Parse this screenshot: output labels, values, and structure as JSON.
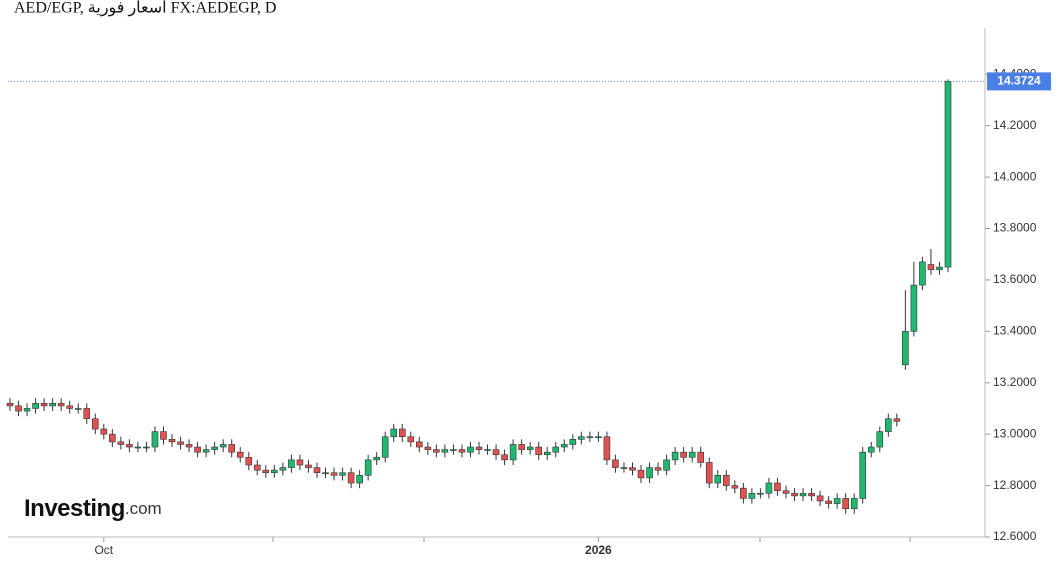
{
  "chart_data": {
    "type": "candlestick",
    "title": "AED/EGP, أسعار فورية FX:AEDEGP, D",
    "logo": {
      "name": "Investing",
      "suffix": ".com"
    },
    "series": [
      {
        "name": "AED/EGP",
        "up_color": "#1fb86e",
        "down_color": "#e05252",
        "open": [
          13.12,
          13.11,
          13.09,
          13.1,
          13.12,
          13.11,
          13.12,
          13.11,
          13.1,
          13.1,
          13.06,
          13.02,
          13.0,
          12.97,
          12.96,
          12.95,
          12.95,
          12.95,
          13.01,
          12.98,
          12.97,
          12.96,
          12.95,
          12.93,
          12.94,
          12.95,
          12.96,
          12.93,
          12.91,
          12.88,
          12.86,
          12.85,
          12.86,
          12.87,
          12.9,
          12.88,
          12.87,
          12.85,
          12.85,
          12.84,
          12.85,
          12.81,
          12.84,
          12.9,
          12.91,
          12.99,
          13.02,
          12.99,
          12.97,
          12.95,
          12.94,
          12.93,
          12.94,
          12.94,
          12.93,
          12.95,
          12.94,
          12.94,
          12.92,
          12.9,
          12.96,
          12.94,
          12.95,
          12.92,
          12.93,
          12.95,
          12.96,
          12.98,
          12.99,
          12.99,
          12.99,
          12.9,
          12.87,
          12.87,
          12.86,
          12.83,
          12.87,
          12.86,
          12.9,
          12.93,
          12.91,
          12.93,
          12.89,
          12.81,
          12.84,
          12.8,
          12.79,
          12.75,
          12.77,
          12.77,
          12.81,
          12.78,
          12.77,
          12.76,
          12.77,
          12.76,
          12.74,
          12.73,
          12.75,
          12.71,
          12.75,
          12.93,
          12.95,
          13.01,
          13.06,
          13.27,
          13.4,
          13.58,
          13.66,
          13.64,
          13.65
        ],
        "high": [
          13.14,
          13.13,
          13.12,
          13.14,
          13.14,
          13.14,
          13.14,
          13.13,
          13.12,
          13.12,
          13.08,
          13.04,
          13.02,
          12.99,
          12.98,
          12.97,
          12.97,
          13.03,
          13.03,
          13.0,
          12.99,
          12.98,
          12.97,
          12.96,
          12.97,
          12.98,
          12.98,
          12.95,
          12.93,
          12.9,
          12.88,
          12.88,
          12.89,
          12.92,
          12.92,
          12.9,
          12.89,
          12.87,
          12.87,
          12.87,
          12.87,
          12.86,
          12.92,
          12.93,
          13.01,
          13.04,
          13.04,
          13.01,
          12.99,
          12.97,
          12.96,
          12.96,
          12.96,
          12.96,
          12.97,
          12.97,
          12.96,
          12.96,
          12.94,
          12.98,
          12.98,
          12.97,
          12.97,
          12.95,
          12.97,
          12.98,
          13.0,
          13.01,
          13.01,
          13.01,
          13.01,
          12.92,
          12.89,
          12.89,
          12.88,
          12.89,
          12.89,
          12.92,
          12.95,
          12.95,
          12.95,
          12.95,
          12.91,
          12.86,
          12.86,
          12.82,
          12.81,
          12.79,
          12.79,
          12.83,
          12.83,
          12.8,
          12.79,
          12.79,
          12.79,
          12.78,
          12.76,
          12.77,
          12.77,
          12.77,
          12.95,
          12.97,
          13.03,
          13.08,
          13.08,
          13.56,
          13.67,
          13.69,
          13.72,
          13.67,
          14.38
        ],
        "low": [
          13.09,
          13.07,
          13.07,
          13.08,
          13.09,
          13.09,
          13.09,
          13.08,
          13.08,
          13.04,
          13.0,
          12.98,
          12.95,
          12.94,
          12.93,
          12.93,
          12.93,
          12.93,
          12.96,
          12.95,
          12.94,
          12.93,
          12.91,
          12.91,
          12.92,
          12.93,
          12.91,
          12.89,
          12.86,
          12.84,
          12.83,
          12.83,
          12.84,
          12.85,
          12.86,
          12.85,
          12.83,
          12.83,
          12.82,
          12.82,
          12.79,
          12.79,
          12.82,
          12.88,
          12.89,
          12.97,
          12.97,
          12.95,
          12.93,
          12.92,
          12.91,
          12.91,
          12.92,
          12.91,
          12.91,
          12.92,
          12.92,
          12.9,
          12.88,
          12.88,
          12.92,
          12.92,
          12.9,
          12.9,
          12.91,
          12.93,
          12.94,
          12.96,
          12.97,
          12.97,
          12.88,
          12.85,
          12.85,
          12.84,
          12.81,
          12.81,
          12.84,
          12.84,
          12.88,
          12.89,
          12.89,
          12.87,
          12.79,
          12.79,
          12.78,
          12.77,
          12.73,
          12.73,
          12.75,
          12.75,
          12.76,
          12.75,
          12.74,
          12.74,
          12.74,
          12.72,
          12.71,
          12.71,
          12.69,
          12.69,
          12.73,
          12.91,
          12.93,
          12.99,
          13.03,
          13.25,
          13.38,
          13.56,
          13.62,
          13.62,
          13.63
        ],
        "close": [
          13.11,
          13.09,
          13.1,
          13.12,
          13.11,
          13.12,
          13.11,
          13.1,
          13.1,
          13.06,
          13.02,
          13.0,
          12.97,
          12.96,
          12.95,
          12.95,
          12.95,
          13.01,
          12.98,
          12.97,
          12.96,
          12.95,
          12.93,
          12.94,
          12.95,
          12.96,
          12.93,
          12.91,
          12.88,
          12.86,
          12.85,
          12.86,
          12.87,
          12.9,
          12.88,
          12.87,
          12.85,
          12.85,
          12.84,
          12.85,
          12.81,
          12.84,
          12.9,
          12.91,
          12.99,
          13.02,
          12.99,
          12.97,
          12.95,
          12.94,
          12.93,
          12.94,
          12.94,
          12.93,
          12.95,
          12.94,
          12.94,
          12.92,
          12.9,
          12.96,
          12.94,
          12.95,
          12.92,
          12.93,
          12.95,
          12.96,
          12.98,
          12.99,
          12.99,
          12.99,
          12.9,
          12.87,
          12.87,
          12.86,
          12.83,
          12.87,
          12.86,
          12.9,
          12.93,
          12.91,
          12.93,
          12.89,
          12.81,
          12.84,
          12.8,
          12.79,
          12.75,
          12.77,
          12.77,
          12.81,
          12.78,
          12.77,
          12.76,
          12.77,
          12.76,
          12.74,
          12.73,
          12.75,
          12.71,
          12.75,
          12.93,
          12.95,
          13.01,
          13.06,
          13.05,
          13.4,
          13.58,
          13.67,
          13.64,
          13.65,
          14.3724
        ]
      }
    ],
    "last_price_color": "#4a80e6",
    "ylim": [
      12.6,
      14.58
    ],
    "yticks": [
      {
        "value": 12.6,
        "label": "12.6000"
      },
      {
        "value": 12.8,
        "label": "12.8000"
      },
      {
        "value": 13.0,
        "label": "13.0000"
      },
      {
        "value": 13.2,
        "label": "13.2000"
      },
      {
        "value": 13.4,
        "label": "13.4000"
      },
      {
        "value": 13.6,
        "label": "13.6000"
      },
      {
        "value": 13.8,
        "label": "13.8000"
      },
      {
        "value": 14.0,
        "label": "14.0000"
      },
      {
        "value": 14.2,
        "label": "14.2000"
      },
      {
        "value": 14.4,
        "label": "14.4000"
      }
    ],
    "xticks": [
      {
        "value": 11,
        "label": "Oct"
      },
      {
        "value": 69,
        "label": "2026"
      }
    ]
  }
}
